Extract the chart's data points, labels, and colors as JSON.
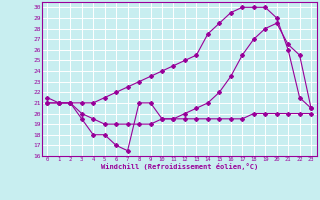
{
  "xlabel": "Windchill (Refroidissement éolien,°C)",
  "bg_color": "#c8eef0",
  "grid_color": "#ffffff",
  "line_color": "#990099",
  "xlim": [
    -0.5,
    23.5
  ],
  "ylim": [
    16,
    30.5
  ],
  "yticks": [
    16,
    17,
    18,
    19,
    20,
    21,
    22,
    23,
    24,
    25,
    26,
    27,
    28,
    29,
    30
  ],
  "xticks": [
    0,
    1,
    2,
    3,
    4,
    5,
    6,
    7,
    8,
    9,
    10,
    11,
    12,
    13,
    14,
    15,
    16,
    17,
    18,
    19,
    20,
    21,
    22,
    23
  ],
  "line1_x": [
    0,
    1,
    2,
    3,
    4,
    5,
    6,
    7,
    8,
    9,
    10,
    11,
    12,
    13,
    14,
    15,
    16,
    17,
    18,
    19,
    20,
    21,
    22,
    23
  ],
  "line1_y": [
    21,
    21,
    21,
    19.5,
    18,
    18,
    17,
    16.5,
    21,
    21,
    19.5,
    19.5,
    19.5,
    19.5,
    19.5,
    19.5,
    19.5,
    19.5,
    20,
    20,
    20,
    20,
    20,
    20
  ],
  "line2_x": [
    0,
    1,
    2,
    3,
    4,
    5,
    6,
    7,
    8,
    9,
    10,
    11,
    12,
    13,
    14,
    15,
    16,
    17,
    18,
    19,
    20,
    21,
    22,
    23
  ],
  "line2_y": [
    21,
    21,
    21,
    20,
    19.5,
    19,
    19,
    19,
    19,
    19,
    19.5,
    19.5,
    20,
    20.5,
    21,
    22,
    23.5,
    25.5,
    27,
    28,
    28.5,
    26.5,
    25.5,
    20.5
  ],
  "line3_x": [
    0,
    1,
    2,
    3,
    4,
    5,
    6,
    7,
    8,
    9,
    10,
    11,
    12,
    13,
    14,
    15,
    16,
    17,
    18,
    19,
    20,
    21,
    22,
    23
  ],
  "line3_y": [
    21.5,
    21,
    21,
    21,
    21,
    21.5,
    22,
    22.5,
    23,
    23.5,
    24,
    24.5,
    25,
    25.5,
    27.5,
    28.5,
    29.5,
    30,
    30,
    30,
    29,
    26,
    21.5,
    20.5
  ]
}
